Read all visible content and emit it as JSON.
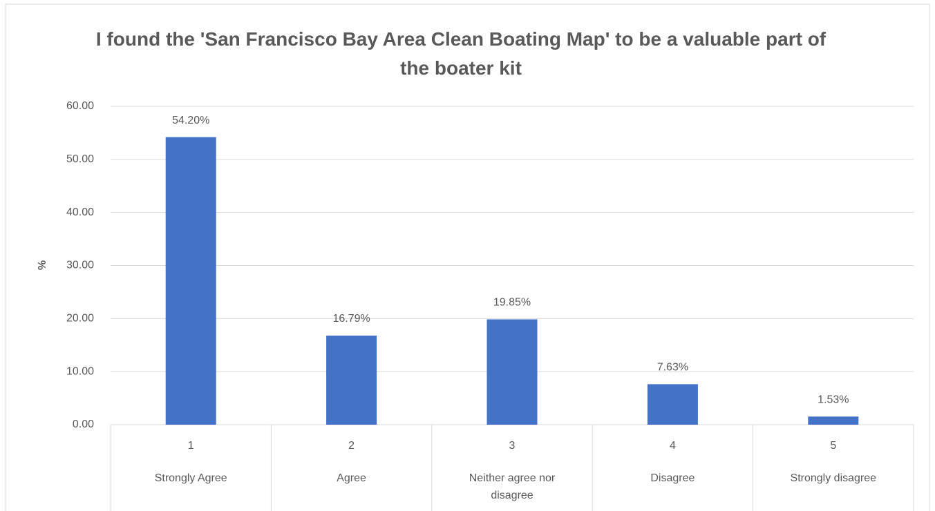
{
  "chart_data": {
    "type": "bar",
    "title": "I found the 'San Francisco Bay Area Clean Boating Map' to be a valuable part of the boater kit",
    "ylabel": "%",
    "categories": [
      "1",
      "2",
      "3",
      "4",
      "5"
    ],
    "subcategories": [
      "Strongly Agree",
      "Agree",
      "Neither agree nor disagree",
      "Disagree",
      "Strongly disagree"
    ],
    "values": [
      54.2,
      16.79,
      19.85,
      7.63,
      1.53
    ],
    "value_labels": [
      "54.20%",
      "16.79%",
      "19.85%",
      "7.63%",
      "1.53%"
    ],
    "color": "#4472c4",
    "ylim": [
      0,
      60
    ],
    "yticks": [
      {
        "value": 0,
        "label": "0.00"
      },
      {
        "value": 10,
        "label": "10.00"
      },
      {
        "value": 20,
        "label": "20.00"
      },
      {
        "value": 30,
        "label": "30.00"
      },
      {
        "value": 40,
        "label": "40.00"
      },
      {
        "value": 50,
        "label": "50.00"
      },
      {
        "value": 60,
        "label": "60.00"
      }
    ],
    "grid": true
  }
}
